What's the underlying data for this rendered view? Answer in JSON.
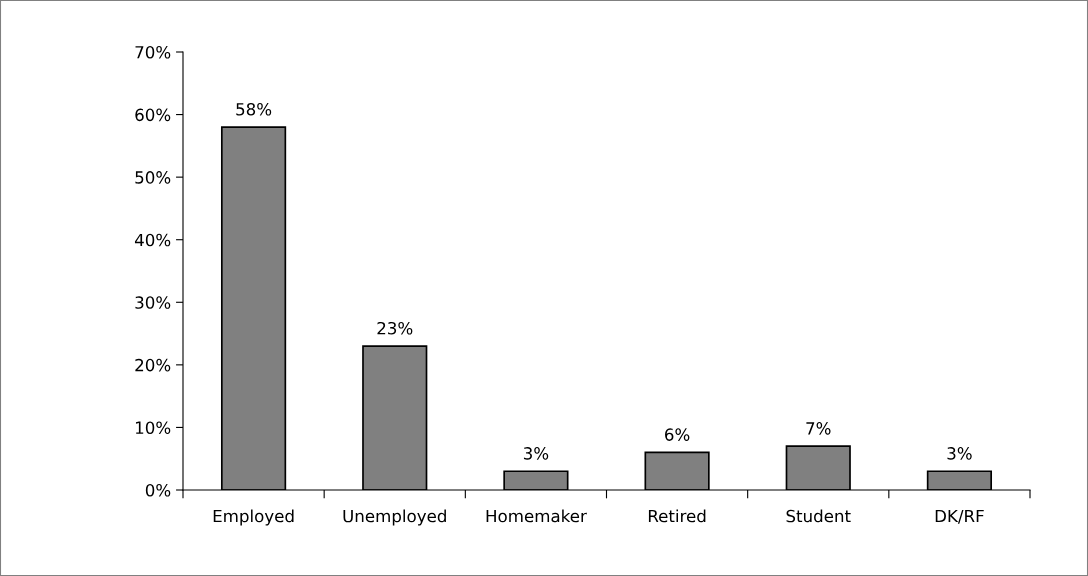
{
  "chart_data": {
    "type": "bar",
    "categories": [
      "Employed",
      "Unemployed",
      "Homemaker",
      "Retired",
      "Student",
      "DK/RF"
    ],
    "values": [
      58,
      23,
      3,
      6,
      7,
      3
    ],
    "value_labels": [
      "58%",
      "23%",
      "3%",
      "6%",
      "7%",
      "3%"
    ],
    "color": "#808080",
    "ylim": [
      0,
      70
    ],
    "yticks": [
      {
        "value": 0,
        "label": "0%"
      },
      {
        "value": 10,
        "label": "10%"
      },
      {
        "value": 20,
        "label": "20%"
      },
      {
        "value": 30,
        "label": "30%"
      },
      {
        "value": 40,
        "label": "40%"
      },
      {
        "value": 50,
        "label": "50%"
      },
      {
        "value": 60,
        "label": "60%"
      },
      {
        "value": 70,
        "label": "70%"
      }
    ],
    "grid": false,
    "legend": false
  }
}
